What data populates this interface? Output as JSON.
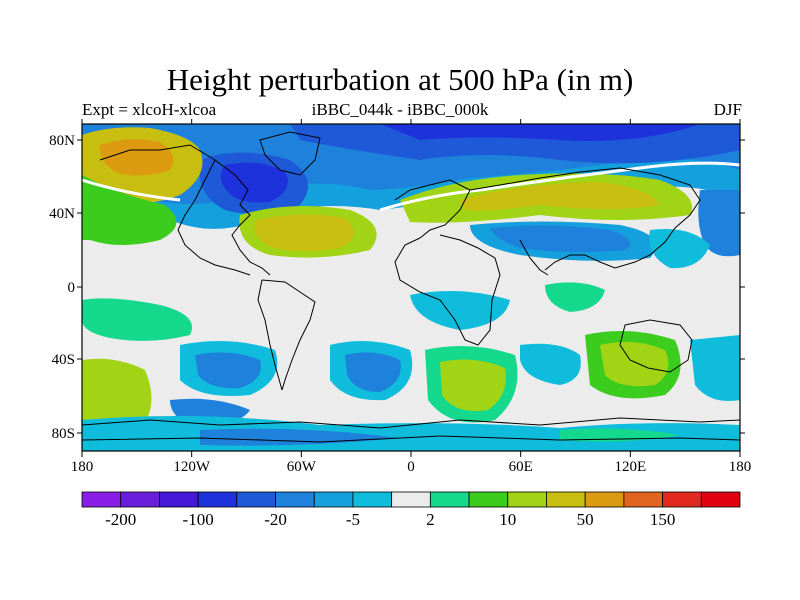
{
  "title": "Height perturbation at 500 hPa (in m)",
  "subtitle_left": "Expt = xlcoH-xlcoa",
  "subtitle_center": "iBBC_044k - iBBC_000k",
  "subtitle_right": "DJF",
  "lon_ticks": [
    "180",
    "120W",
    "60W",
    "0",
    "60E",
    "120E",
    "180"
  ],
  "lat_ticks": [
    "80N",
    "40N",
    "0",
    "40S",
    "80S"
  ],
  "colorbar": {
    "colors": [
      "#8a1ee6",
      "#6a1edc",
      "#4418d6",
      "#1e32dc",
      "#1e5ad8",
      "#1e82dc",
      "#14a0dc",
      "#10bcdc",
      "#ececec",
      "#14d88c",
      "#3ccc1e",
      "#a0d414",
      "#c8be10",
      "#dc9a10",
      "#e0641e",
      "#e0281e",
      "#e00010"
    ],
    "labels": [
      "-200",
      "-100",
      "-20",
      "-5",
      "2",
      "10",
      "50",
      "150"
    ]
  },
  "colors": {
    "background_field": "#ececec",
    "coast": "#000000",
    "white": "#ffffff"
  }
}
